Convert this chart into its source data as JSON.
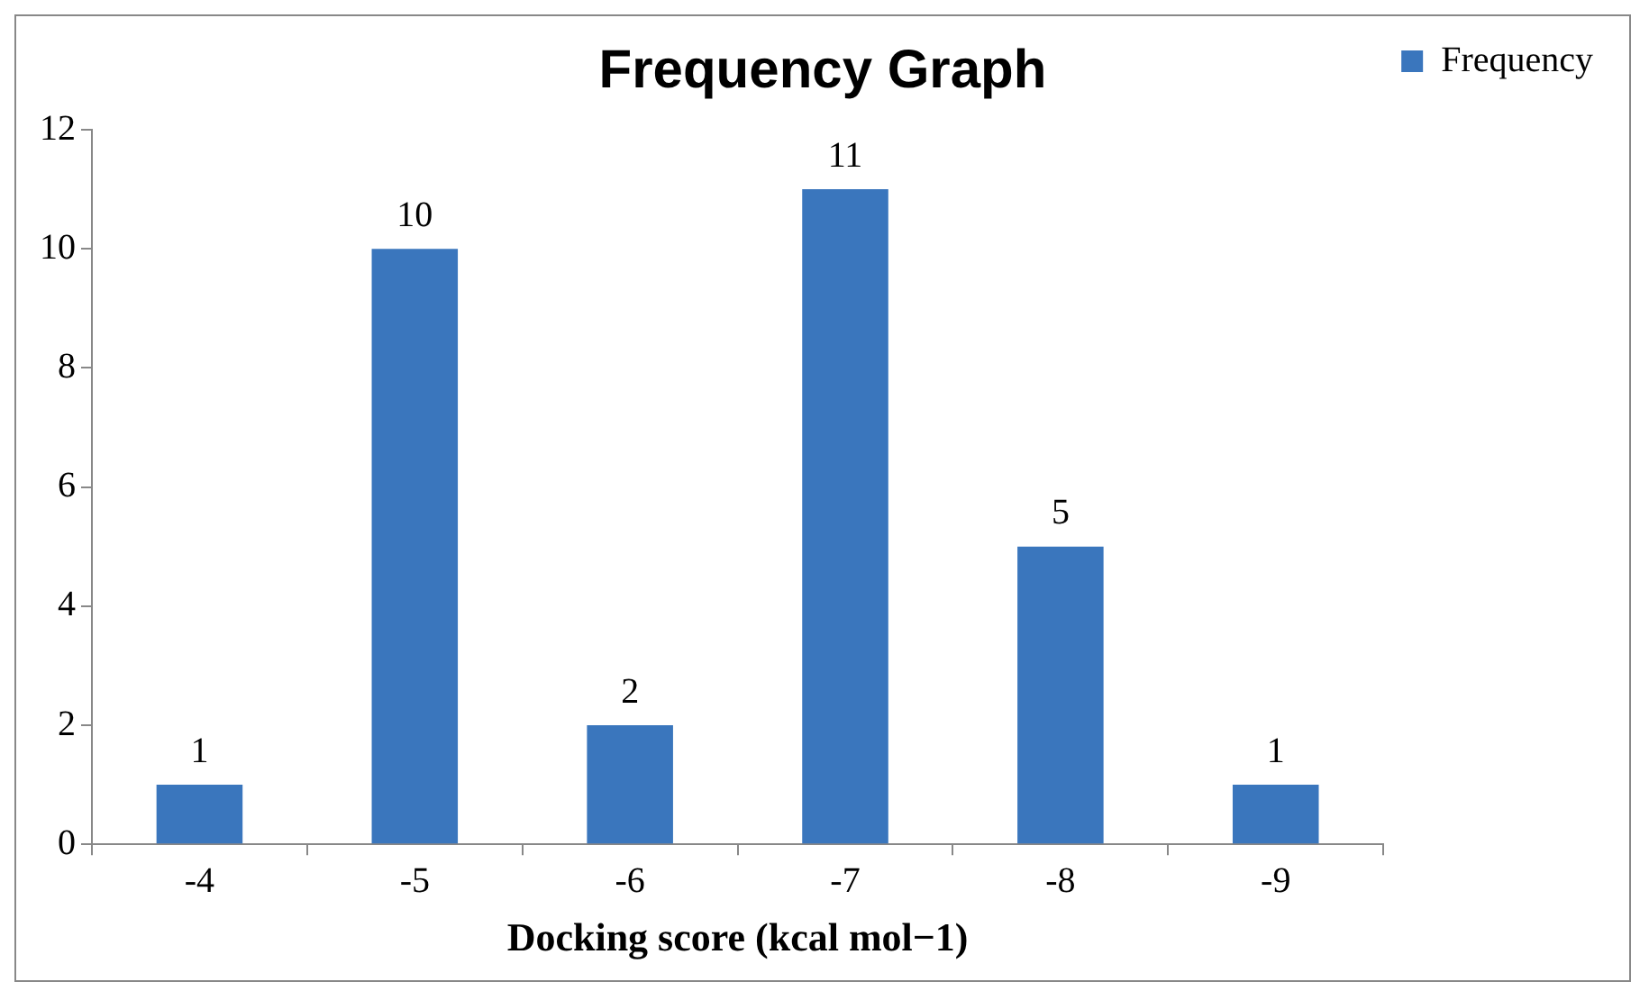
{
  "chart_data": {
    "type": "bar",
    "title": "Frequency Graph",
    "xlabel": "Docking score (kcal mol−1)",
    "categories": [
      "-4",
      "-5",
      "-6",
      "-7",
      "-8",
      "-9"
    ],
    "series": [
      {
        "name": "Frequency",
        "color": "#3a76bd",
        "values": [
          1,
          10,
          2,
          11,
          5,
          1
        ]
      }
    ],
    "ylim": [
      0,
      12
    ],
    "yticks": [
      0,
      2,
      4,
      6,
      8,
      10,
      12
    ],
    "data_labels": true,
    "legend": "top right",
    "grid": false
  }
}
